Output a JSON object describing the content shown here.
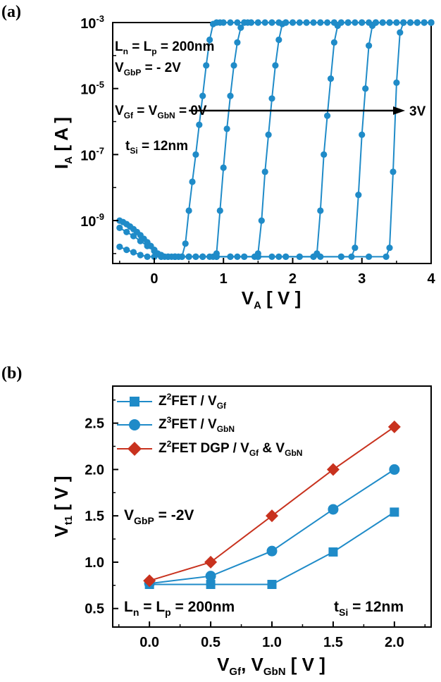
{
  "figure": {
    "panel_a_label": "(a)",
    "panel_b_label": "(b)"
  },
  "chart_data": [
    {
      "type": "scatter",
      "panel": "(a)",
      "y_scale": "log",
      "xlim": [
        -0.6,
        4.0
      ],
      "ylim": [
        5e-11,
        0.001
      ],
      "xticks": [
        "0",
        "1",
        "2",
        "3",
        "4"
      ],
      "yticks": [
        {
          "base": "10",
          "exp": "-3"
        },
        {
          "base": "10",
          "exp": "-5"
        },
        {
          "base": "10",
          "exp": "-7"
        },
        {
          "base": "10",
          "exp": "-9"
        }
      ],
      "xlabel": {
        "main": "V",
        "sub": "A",
        "unit": " [ V ]"
      },
      "ylabel": {
        "main": "I",
        "sub": "A",
        "unit": " [ A ]"
      },
      "color": "#1f8bc8",
      "annotations": {
        "l1": {
          "a": "L",
          "as": "n",
          "b": " = L",
          "bs": "p",
          "c": " = 200nm"
        },
        "l2": {
          "a": "V",
          "as": "GbP",
          "b": " = - 2V"
        },
        "l3": {
          "a": "V",
          "as": "Gf",
          "b": " = V",
          "bs": "GbN",
          "c": " = 0V"
        },
        "l4": {
          "a": "t",
          "as": "Si",
          "b": " = 12nm"
        },
        "arrow_end": "3V"
      },
      "series": [
        {
          "x": [
            -0.5,
            -0.45,
            -0.4,
            -0.35,
            -0.3,
            -0.25,
            -0.2,
            -0.15,
            -0.1,
            -0.05,
            0.0,
            0.05,
            0.1,
            0.15,
            0.2,
            0.25,
            0.3,
            0.35,
            0.4,
            0.45,
            0.5,
            0.55,
            0.6,
            0.65,
            0.7,
            0.75,
            0.8,
            0.85,
            0.9,
            0.95,
            1.0,
            1.1,
            1.2,
            1.3,
            1.4,
            1.5,
            1.6,
            1.7,
            1.8,
            1.9,
            2.0,
            2.2,
            2.4,
            2.6,
            2.8,
            3.0,
            3.2,
            3.4,
            3.6,
            3.8,
            4.0
          ],
          "y": [
            1e-09,
            9e-10,
            7.8e-10,
            6.6e-10,
            5.5e-10,
            4.5e-10,
            3.6e-10,
            2.8e-10,
            2.2e-10,
            1.7e-10,
            1.3e-10,
            1e-10,
            8e-11,
            8e-11,
            8e-11,
            8e-11,
            8e-11,
            8e-11,
            8e-11,
            2e-10,
            2e-09,
            1.5e-08,
            1e-07,
            8e-07,
            6e-06,
            5e-05,
            0.0003,
            0.0009,
            0.001,
            0.001,
            0.001,
            0.001,
            0.001,
            0.001,
            0.001,
            0.001,
            0.001,
            0.001,
            0.001,
            0.001,
            0.001,
            0.001,
            0.001,
            0.001,
            0.001,
            0.001,
            0.001,
            0.001,
            0.001,
            0.001,
            0.001
          ]
        },
        {
          "x": [
            -0.5,
            -0.4,
            -0.3,
            -0.2,
            -0.1,
            0.0,
            0.1,
            0.2,
            0.3,
            0.4,
            0.5,
            0.6,
            0.7,
            0.8,
            0.85,
            0.9,
            0.95,
            1.0,
            1.05,
            1.1,
            1.15,
            1.2,
            1.25,
            1.3,
            1.35,
            1.4,
            1.5,
            1.7,
            1.9,
            2.1,
            2.3,
            2.5,
            2.7,
            2.9,
            3.1,
            3.3,
            3.5,
            3.7,
            3.9,
            4.0
          ],
          "y": [
            6e-10,
            4.5e-10,
            3.4e-10,
            2.4e-10,
            1.7e-10,
            1.2e-10,
            9e-11,
            8e-11,
            8e-11,
            8e-11,
            8e-11,
            8e-11,
            8e-11,
            8e-11,
            8e-11,
            1e-10,
            2e-09,
            4e-08,
            6e-07,
            6e-06,
            5e-05,
            0.00025,
            0.0007,
            0.001,
            0.001,
            0.001,
            0.001,
            0.001,
            0.001,
            0.001,
            0.001,
            0.001,
            0.001,
            0.001,
            0.001,
            0.001,
            0.001,
            0.001,
            0.001,
            0.001
          ]
        },
        {
          "x": [
            -0.5,
            -0.4,
            -0.3,
            -0.2,
            -0.1,
            0.0,
            0.1,
            0.3,
            0.5,
            0.7,
            0.9,
            1.1,
            1.3,
            1.45,
            1.5,
            1.55,
            1.6,
            1.65,
            1.7,
            1.75,
            1.8,
            1.85,
            1.9,
            2.0,
            2.2,
            2.4,
            2.6,
            2.8,
            3.0,
            3.2,
            3.4,
            3.6,
            3.8,
            4.0
          ],
          "y": [
            1.6e-10,
            1.3e-10,
            1.1e-10,
            9e-11,
            8e-11,
            8e-11,
            8e-11,
            8e-11,
            8e-11,
            8e-11,
            8e-11,
            8e-11,
            8e-11,
            8e-11,
            1e-10,
            1e-09,
            3e-08,
            4e-07,
            5e-06,
            5e-05,
            0.0003,
            0.0009,
            0.001,
            0.001,
            0.001,
            0.001,
            0.001,
            0.001,
            0.001,
            0.001,
            0.001,
            0.001,
            0.001,
            0.001
          ]
        },
        {
          "x": [
            0.3,
            0.5,
            0.7,
            0.9,
            1.1,
            1.3,
            1.5,
            1.7,
            1.9,
            2.1,
            2.3,
            2.35,
            2.4,
            2.45,
            2.5,
            2.55,
            2.6,
            2.65,
            2.7,
            2.8,
            3.0,
            3.2,
            3.4,
            3.6,
            3.8,
            4.0
          ],
          "y": [
            8e-11,
            8e-11,
            8e-11,
            8e-11,
            8e-11,
            8e-11,
            8e-11,
            8e-11,
            8e-11,
            8e-11,
            8e-11,
            1e-10,
            2e-09,
            1e-07,
            1.5e-06,
            2e-05,
            0.00025,
            0.0008,
            0.001,
            0.001,
            0.001,
            0.001,
            0.001,
            0.001,
            0.001,
            0.001
          ]
        },
        {
          "x": [
            0.3,
            0.6,
            0.9,
            1.2,
            1.5,
            1.8,
            2.1,
            2.4,
            2.7,
            2.85,
            2.9,
            2.95,
            3.0,
            3.05,
            3.1,
            3.15,
            3.2,
            3.3,
            3.5,
            3.7,
            3.9,
            4.0
          ],
          "y": [
            8e-11,
            8e-11,
            8e-11,
            8e-11,
            8e-11,
            8e-11,
            8e-11,
            8e-11,
            8e-11,
            8e-11,
            1.5e-10,
            6e-09,
            4e-07,
            1e-05,
            0.0002,
            0.0008,
            0.001,
            0.001,
            0.001,
            0.001,
            0.001,
            0.001
          ]
        },
        {
          "x": [
            0.3,
            0.7,
            1.1,
            1.5,
            1.9,
            2.3,
            2.7,
            3.1,
            3.35,
            3.4,
            3.45,
            3.5,
            3.55,
            3.6,
            3.7,
            3.8,
            3.9,
            4.0
          ],
          "y": [
            8e-11,
            8e-11,
            8e-11,
            8e-11,
            8e-11,
            8e-11,
            8e-11,
            8e-11,
            8e-11,
            1.5e-10,
            3e-08,
            1.5e-05,
            0.0005,
            0.001,
            0.001,
            0.001,
            0.001,
            0.001
          ]
        }
      ]
    },
    {
      "type": "line",
      "panel": "(b)",
      "xlim": [
        -0.3,
        2.3
      ],
      "ylim": [
        0.3,
        2.9
      ],
      "xticks": [
        "0.0",
        "0.5",
        "1.0",
        "1.5",
        "2.0"
      ],
      "yticks": [
        "0.5",
        "1.0",
        "1.5",
        "2.0",
        "2.5"
      ],
      "xlabel": {
        "a": "V",
        "as": "Gf",
        "b": ", V",
        "bs": "GbN",
        "c": " [ V ]"
      },
      "ylabel": {
        "main": "V",
        "sub": "t1",
        "unit": " [ V ]"
      },
      "annotations": {
        "vgbp": {
          "a": "V",
          "as": "GbP",
          "b": " = -2V"
        },
        "lnlp": {
          "a": "L",
          "as": "n",
          "b": " = L",
          "bs": "p",
          "c": " = 200nm"
        },
        "tsi": {
          "a": "t",
          "as": "Si",
          "b": " = 12nm"
        }
      },
      "series": [
        {
          "legend": {
            "a": "Z",
            "sup": "2",
            "b": "FET  / V",
            "bs": "Gf"
          },
          "marker": "square",
          "color": "#1f8bc8",
          "x": [
            0,
            0.5,
            1.0,
            1.5,
            2.0
          ],
          "y": [
            0.76,
            0.76,
            0.76,
            1.11,
            1.54
          ]
        },
        {
          "legend": {
            "a": "Z",
            "sup": "3",
            "b": "FET  / V",
            "bs": "GbN"
          },
          "marker": "circle",
          "color": "#1f8bc8",
          "x": [
            0,
            0.5,
            1.0,
            1.5,
            2.0
          ],
          "y": [
            0.77,
            0.85,
            1.12,
            1.57,
            2.0
          ]
        },
        {
          "legend": {
            "a": "Z",
            "sup": "2",
            "b": "FET DGP / V",
            "bs": "Gf",
            "c": " & V",
            "cs": "GbN"
          },
          "marker": "diamond",
          "color": "#c8321e",
          "x": [
            0,
            0.5,
            1.0,
            1.5,
            2.0
          ],
          "y": [
            0.8,
            1.0,
            1.5,
            2.0,
            2.46
          ]
        }
      ]
    }
  ]
}
